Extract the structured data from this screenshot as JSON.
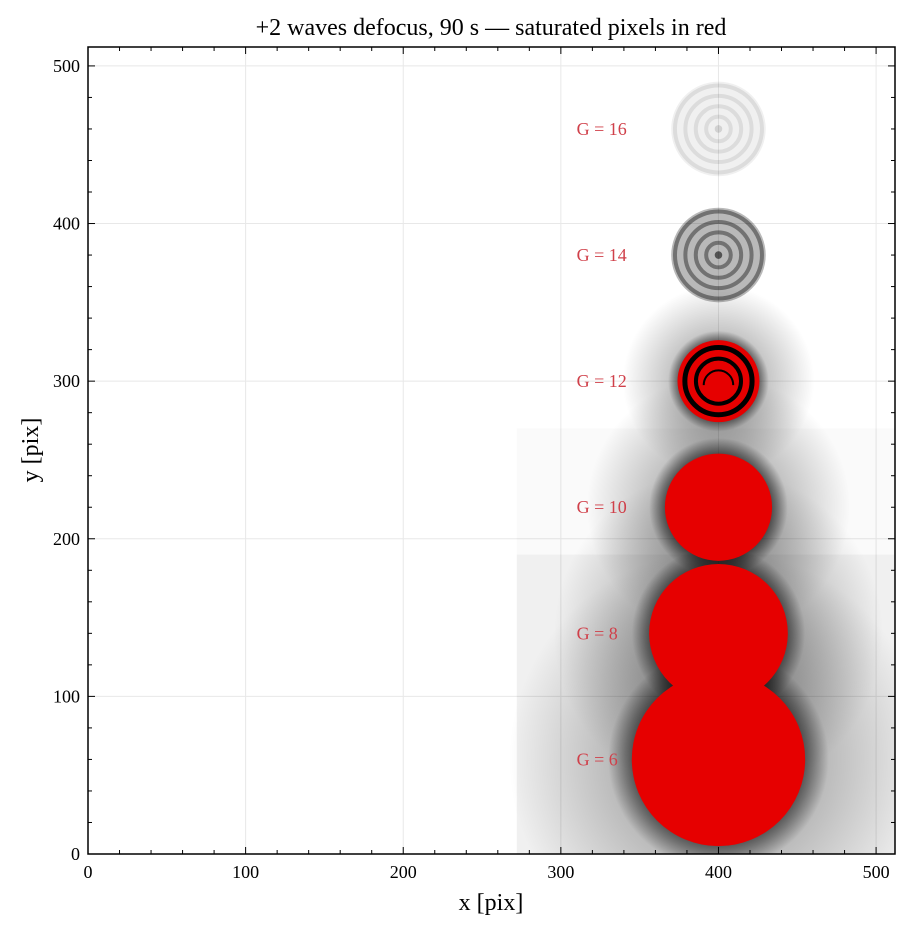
{
  "chart_data": {
    "type": "heatmap",
    "title": "+2 waves defocus, 90 s — saturated pixels in red",
    "xlabel": "x [pix]",
    "ylabel": "y [pix]",
    "xlim": [
      0,
      512
    ],
    "ylim": [
      0,
      512
    ],
    "xticks": [
      0,
      100,
      200,
      300,
      400,
      500
    ],
    "yticks": [
      0,
      100,
      200,
      300,
      400,
      500
    ],
    "grid": true,
    "colors": {
      "saturated": "#e60000",
      "label": "#d0404a",
      "ink": "#000000",
      "grid": "#e8e8e8"
    },
    "stars": [
      {
        "label": "G = 6",
        "x": 400,
        "y": 60,
        "saturated_radius": 55,
        "halo_radius": 70
      },
      {
        "label": "G = 8",
        "x": 400,
        "y": 140,
        "saturated_radius": 44,
        "halo_radius": 55
      },
      {
        "label": "G = 10",
        "x": 400,
        "y": 220,
        "saturated_radius": 34,
        "halo_radius": 44
      },
      {
        "label": "G = 12",
        "x": 400,
        "y": 300,
        "saturated_radius": 26,
        "halo_radius": 32,
        "ring_structure": true
      },
      {
        "label": "G = 14",
        "x": 400,
        "y": 380,
        "saturated_radius": 0,
        "halo_radius": 30,
        "peak_gray": 0.55
      },
      {
        "label": "G = 16",
        "x": 400,
        "y": 460,
        "saturated_radius": 0,
        "halo_radius": 30,
        "peak_gray": 0.12
      }
    ],
    "label_x": 310,
    "background_steps": [
      {
        "x_from": 272,
        "y_to": 190,
        "gray": 0.04
      },
      {
        "x_from": 272,
        "y_to": 270,
        "gray": 0.02
      }
    ]
  }
}
